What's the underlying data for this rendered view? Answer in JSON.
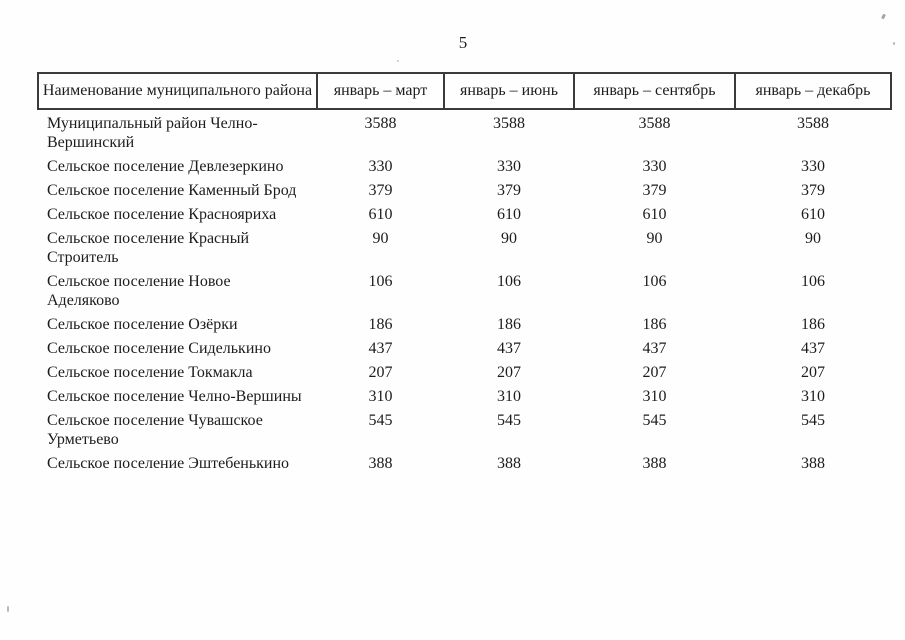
{
  "page": {
    "number": "5"
  },
  "table": {
    "header": [
      "Наименование муниципального района",
      "январь – март",
      "январь – июнь",
      "январь – сентябрь",
      "январь – декабрь"
    ],
    "rows": [
      {
        "name": "Муниципальный район Челно-Вершинский",
        "values": [
          "3588",
          "3588",
          "3588",
          "3588"
        ]
      },
      {
        "name": "Сельское поселение Девлезеркино",
        "values": [
          "330",
          "330",
          "330",
          "330"
        ]
      },
      {
        "name": "Сельское поселение Каменный Брод",
        "values": [
          "379",
          "379",
          "379",
          "379"
        ]
      },
      {
        "name": "Сельское поселение Краснояриха",
        "values": [
          "610",
          "610",
          "610",
          "610"
        ]
      },
      {
        "name": "Сельское поселение Красный Строитель",
        "values": [
          "90",
          "90",
          "90",
          "90"
        ]
      },
      {
        "name": "Сельское поселение Новое Аделяково",
        "values": [
          "106",
          "106",
          "106",
          "106"
        ]
      },
      {
        "name": "Сельское поселение Озёрки",
        "values": [
          "186",
          "186",
          "186",
          "186"
        ]
      },
      {
        "name": "Сельское поселение Сиделькино",
        "values": [
          "437",
          "437",
          "437",
          "437"
        ]
      },
      {
        "name": "Сельское поселение Токмакла",
        "values": [
          "207",
          "207",
          "207",
          "207"
        ]
      },
      {
        "name": "Сельское поселение Челно-Вершины",
        "values": [
          "310",
          "310",
          "310",
          "310"
        ]
      },
      {
        "name": "Сельское поселение Чувашское Урметьево",
        "values": [
          "545",
          "545",
          "545",
          "545"
        ]
      },
      {
        "name": "Сельское поселение Эштебенькино",
        "values": [
          "388",
          "388",
          "388",
          "388"
        ]
      }
    ]
  },
  "colors": {
    "background": "#fefefe",
    "text": "#1c1c1c",
    "border": "#3a3a3a"
  }
}
